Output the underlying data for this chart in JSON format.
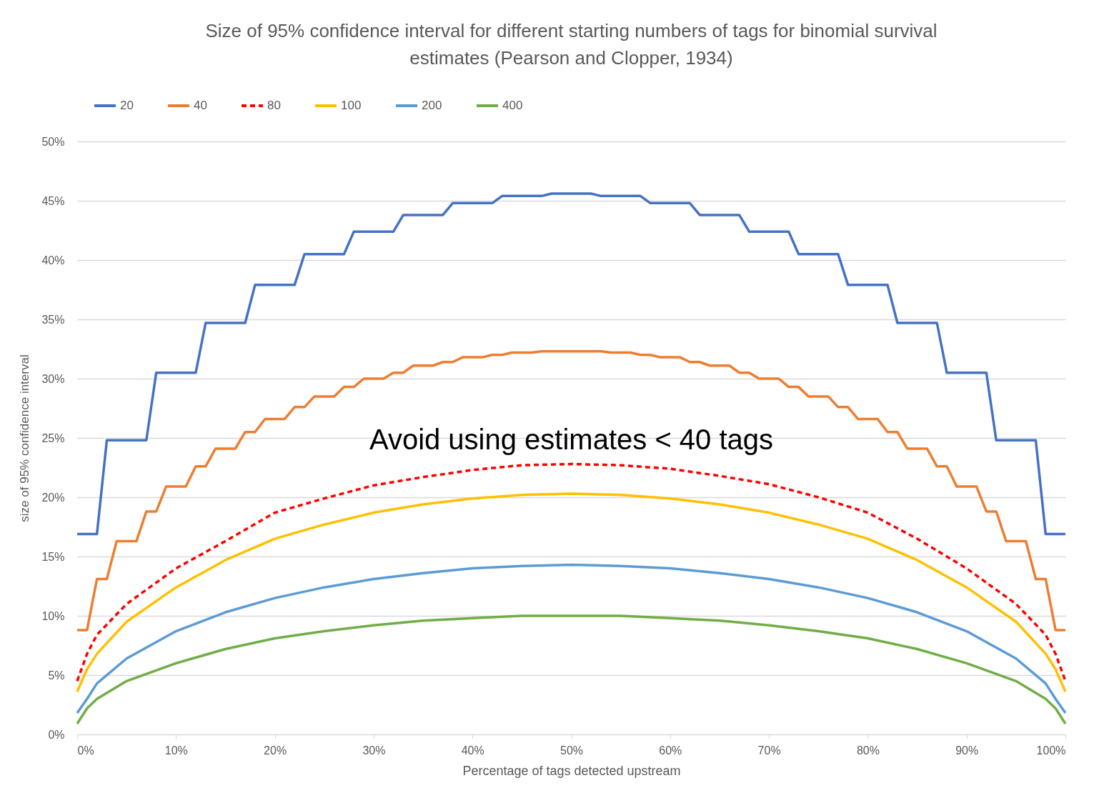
{
  "chart_data": {
    "type": "line",
    "title": "Size of 95% confidence interval for different starting numbers of tags for binomial survival\nestimates (Pearson and Clopper, 1934)",
    "xlabel": "Percentage of tags detected upstream",
    "ylabel": "size of 95% confidence interval",
    "x": [
      0,
      1,
      2,
      5,
      10,
      15,
      20,
      25,
      30,
      35,
      40,
      45,
      50,
      55,
      60,
      65,
      70,
      75,
      80,
      85,
      90,
      95,
      98,
      99,
      100
    ],
    "series": [
      {
        "name": "20",
        "color": "#4472c4",
        "x": [
          0,
          2,
          3,
          7,
          8,
          12,
          13,
          17,
          18,
          22,
          23,
          27,
          28,
          32,
          33,
          37,
          38,
          42,
          43,
          47,
          48,
          52,
          53,
          57,
          58,
          62,
          63,
          67,
          68,
          72,
          73,
          77,
          78,
          82,
          83,
          87,
          88,
          92,
          93,
          97,
          98,
          100
        ],
        "values": [
          16.9,
          16.9,
          24.8,
          24.8,
          30.5,
          30.5,
          34.7,
          34.7,
          37.9,
          37.9,
          40.5,
          40.5,
          42.4,
          42.4,
          43.8,
          43.8,
          44.8,
          44.8,
          45.4,
          45.4,
          45.6,
          45.6,
          45.4,
          45.4,
          44.8,
          44.8,
          43.8,
          43.8,
          42.4,
          42.4,
          40.5,
          40.5,
          37.9,
          37.9,
          34.7,
          34.7,
          30.5,
          30.5,
          24.8,
          24.8,
          16.9,
          16.9
        ]
      },
      {
        "name": "40",
        "color": "#ed7d31",
        "x": [
          0,
          1,
          2,
          3,
          4,
          6,
          7,
          8,
          9,
          11,
          12,
          13,
          14,
          16,
          17,
          18,
          19,
          21,
          22,
          23,
          24,
          26,
          27,
          28,
          29,
          31,
          32,
          33,
          34,
          36,
          37,
          38,
          39,
          41,
          42,
          43,
          44,
          46,
          47,
          53,
          54,
          56,
          57,
          58,
          59,
          61,
          62,
          63,
          64,
          66,
          67,
          68,
          69,
          71,
          72,
          73,
          74,
          76,
          77,
          78,
          79,
          81,
          82,
          83,
          84,
          86,
          87,
          88,
          89,
          91,
          92,
          93,
          94,
          96,
          97,
          98,
          99,
          100
        ],
        "values": [
          8.8,
          8.8,
          13.1,
          13.1,
          16.3,
          16.3,
          18.8,
          18.8,
          20.9,
          20.9,
          22.6,
          22.6,
          24.1,
          24.1,
          25.5,
          25.5,
          26.6,
          26.6,
          27.6,
          27.6,
          28.5,
          28.5,
          29.3,
          29.3,
          30.0,
          30.0,
          30.5,
          30.5,
          31.1,
          31.1,
          31.4,
          31.4,
          31.8,
          31.8,
          32.0,
          32.0,
          32.2,
          32.2,
          32.3,
          32.3,
          32.2,
          32.2,
          32.0,
          32.0,
          31.8,
          31.8,
          31.4,
          31.4,
          31.1,
          31.1,
          30.5,
          30.5,
          30.0,
          30.0,
          29.3,
          29.3,
          28.5,
          28.5,
          27.6,
          27.6,
          26.6,
          26.6,
          25.5,
          25.5,
          24.1,
          24.1,
          22.6,
          22.6,
          20.9,
          20.9,
          18.8,
          18.8,
          16.3,
          16.3,
          13.1,
          13.1,
          8.8,
          8.8
        ]
      },
      {
        "name": "80",
        "color": "#ff0000",
        "line_style": "dashed",
        "values": [
          4.5,
          6.8,
          8.4,
          11.0,
          14.0,
          16.3,
          18.7,
          19.9,
          21.0,
          21.7,
          22.3,
          22.7,
          22.8,
          22.7,
          22.4,
          21.8,
          21.1,
          20.0,
          18.7,
          16.5,
          14.0,
          11.0,
          8.4,
          6.8,
          4.5
        ]
      },
      {
        "name": "100",
        "color": "#ffc000",
        "values": [
          3.6,
          5.5,
          6.8,
          9.5,
          12.4,
          14.7,
          16.5,
          17.7,
          18.7,
          19.4,
          19.9,
          20.2,
          20.3,
          20.2,
          19.9,
          19.4,
          18.7,
          17.7,
          16.5,
          14.7,
          12.4,
          9.5,
          6.8,
          5.5,
          3.6
        ]
      },
      {
        "name": "200",
        "color": "#5b9bd5",
        "values": [
          1.8,
          3.0,
          4.3,
          6.4,
          8.7,
          10.3,
          11.5,
          12.4,
          13.1,
          13.6,
          14.0,
          14.2,
          14.3,
          14.2,
          14.0,
          13.6,
          13.1,
          12.4,
          11.5,
          10.3,
          8.7,
          6.4,
          4.3,
          3.0,
          1.8
        ]
      },
      {
        "name": "400",
        "color": "#70ad47",
        "values": [
          0.9,
          2.2,
          3.0,
          4.5,
          6.0,
          7.2,
          8.1,
          8.7,
          9.2,
          9.6,
          9.8,
          10.0,
          10.0,
          10.0,
          9.8,
          9.6,
          9.2,
          8.7,
          8.1,
          7.2,
          6.0,
          4.5,
          3.0,
          2.2,
          0.9
        ]
      }
    ],
    "xlim": [
      0,
      100
    ],
    "xticks": [
      {
        "value": 0,
        "label": "0%"
      },
      {
        "value": 10,
        "label": "10%"
      },
      {
        "value": 20,
        "label": "20%"
      },
      {
        "value": 30,
        "label": "30%"
      },
      {
        "value": 40,
        "label": "40%"
      },
      {
        "value": 50,
        "label": "50%"
      },
      {
        "value": 60,
        "label": "60%"
      },
      {
        "value": 70,
        "label": "70%"
      },
      {
        "value": 80,
        "label": "80%"
      },
      {
        "value": 90,
        "label": "90%"
      },
      {
        "value": 100,
        "label": "100%"
      }
    ],
    "ylim": [
      0,
      50
    ],
    "yticks": [
      {
        "value": 0,
        "label": "0%"
      },
      {
        "value": 5,
        "label": "5%"
      },
      {
        "value": 10,
        "label": "10%"
      },
      {
        "value": 15,
        "label": "15%"
      },
      {
        "value": 20,
        "label": "20%"
      },
      {
        "value": 25,
        "label": "25%"
      },
      {
        "value": 30,
        "label": "30%"
      },
      {
        "value": 35,
        "label": "35%"
      },
      {
        "value": 40,
        "label": "40%"
      },
      {
        "value": 45,
        "label": "45%"
      },
      {
        "value": 50,
        "label": "50%"
      }
    ],
    "grid": "y",
    "legend": "top",
    "annotations": [
      "Avoid using estimates < 40 tags"
    ]
  }
}
